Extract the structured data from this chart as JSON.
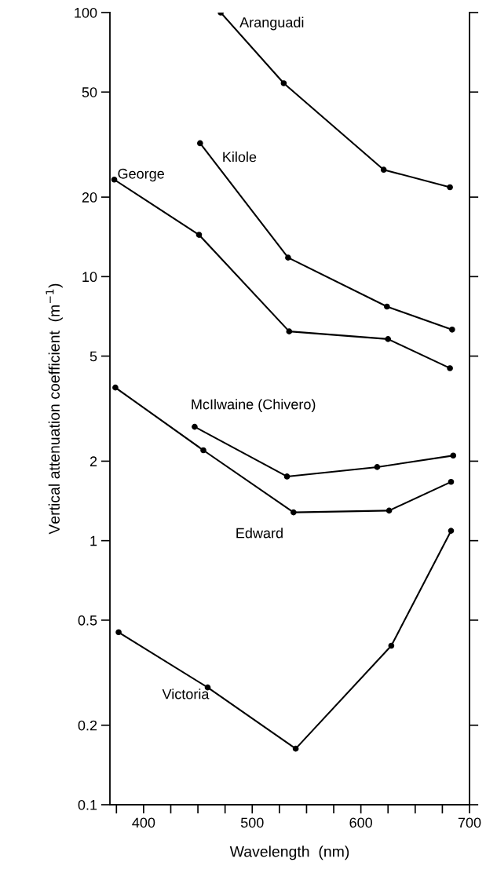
{
  "chart_data": {
    "type": "line",
    "xlabel": "Wavelength  (nm)",
    "ylabel": "Vertical attenuation coefficient  (m$^{−1}$)",
    "log": "y",
    "xlim": [
      369,
      700
    ],
    "ylim": [
      0.1,
      100
    ],
    "xticks": [
      {
        "value": 375,
        "label": null
      },
      400,
      {
        "value": 425,
        "label": null
      },
      {
        "value": 450,
        "label": null
      },
      {
        "value": 475,
        "label": null
      },
      500,
      {
        "value": 525,
        "label": null
      },
      {
        "value": 550,
        "label": null
      },
      {
        "value": 575,
        "label": null
      },
      600,
      {
        "value": 625,
        "label": null
      },
      {
        "value": 650,
        "label": null
      },
      {
        "value": 675,
        "label": null
      },
      700
    ],
    "yticks": [
      0.1,
      0.2,
      0.5,
      1,
      2,
      5,
      10,
      20,
      50,
      100
    ],
    "marker": "circle",
    "line_style": "solid",
    "grid": false,
    "legend": false,
    "series": [
      {
        "name": "Aranguadi",
        "color": "#000000",
        "x": [
          471,
          529,
          621,
          682
        ],
        "values": [
          100,
          54,
          25.4,
          21.8
        ]
      },
      {
        "name": "Kilole",
        "color": "#000000",
        "x": [
          452,
          533,
          624,
          684
        ],
        "values": [
          32,
          11.8,
          7.7,
          6.3
        ]
      },
      {
        "name": "George",
        "color": "#000000",
        "x": [
          373,
          451,
          534,
          625,
          682
        ],
        "values": [
          23.3,
          14.4,
          6.2,
          5.8,
          4.5
        ]
      },
      {
        "name": "McIlwaine (Chivero)",
        "color": "#000000",
        "x": [
          447,
          532,
          615,
          685
        ],
        "values": [
          2.7,
          1.75,
          1.9,
          2.1
        ]
      },
      {
        "name": "Edward",
        "color": "#000000",
        "x": [
          374,
          455,
          538,
          626,
          683
        ],
        "values": [
          3.8,
          2.2,
          1.28,
          1.3,
          1.67
        ]
      },
      {
        "name": "Victoria",
        "color": "#000000",
        "x": [
          377,
          459,
          540,
          628,
          683
        ],
        "values": [
          0.45,
          0.278,
          0.163,
          0.4,
          1.09
        ]
      }
    ]
  }
}
